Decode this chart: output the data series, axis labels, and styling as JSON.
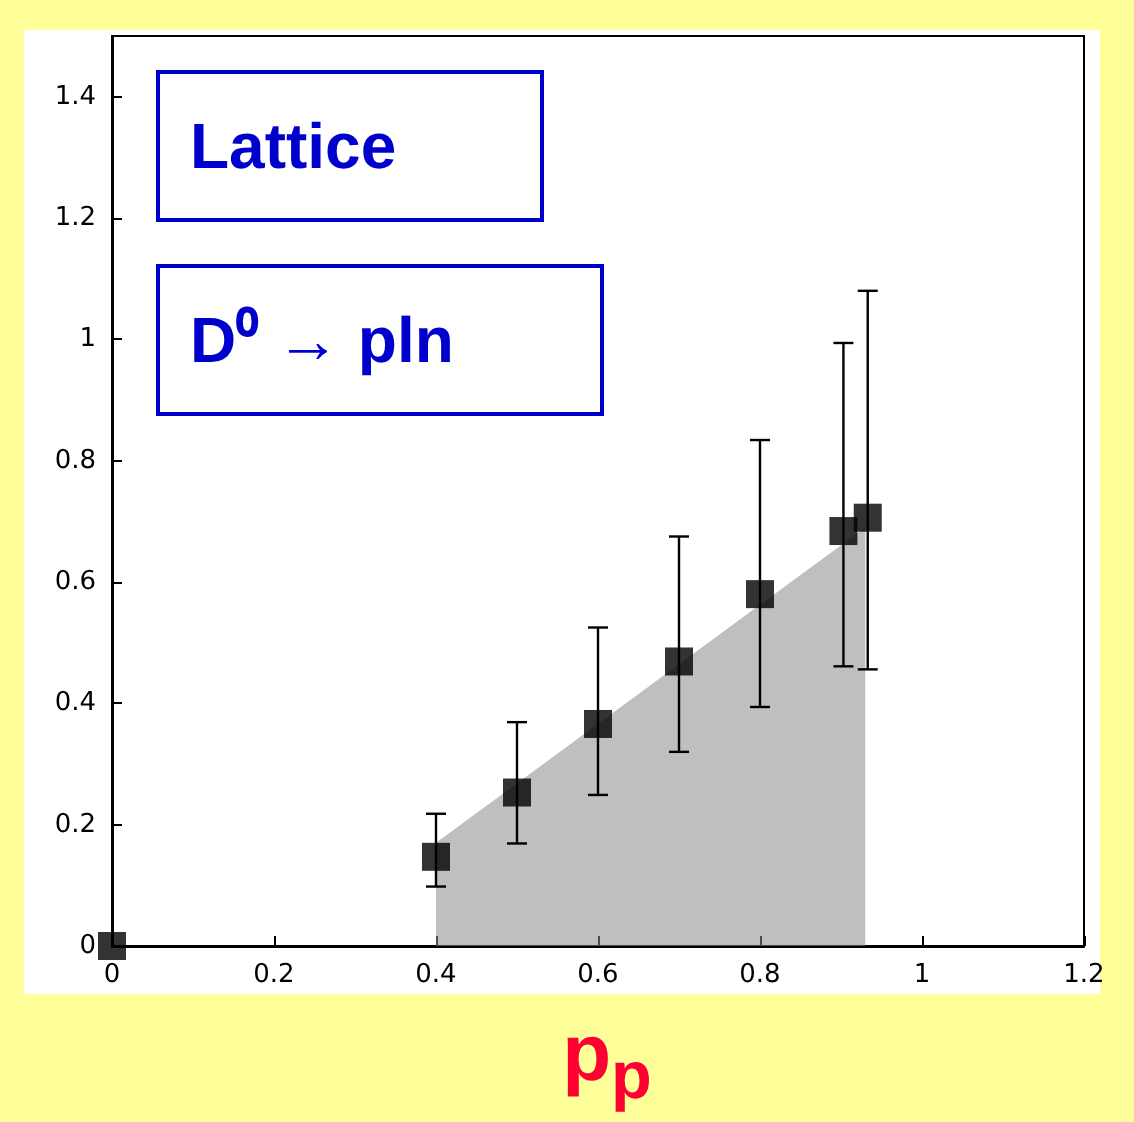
{
  "chart_data": {
    "type": "scatter",
    "xlabel": "p$_{p}$",
    "annotations": [
      "Lattice",
      "D⁰ → pln"
    ],
    "series": [
      {
        "type": "area",
        "marker": "none",
        "color": "#8a8a8a",
        "x": [
          0.4,
          0.93
        ],
        "values": [
          0.17,
          0.69
        ]
      },
      {
        "marker": "square",
        "color": "#000000",
        "x": [
          0,
          0.4,
          0.5,
          0.6,
          0.7,
          0.8,
          0.903,
          0.933
        ],
        "values": [
          0,
          0.147,
          0.253,
          0.366,
          0.469,
          0.58,
          0.684,
          0.706
        ],
        "errors": [
          null,
          [
            0.098,
            0.218
          ],
          [
            0.169,
            0.369
          ],
          [
            0.249,
            0.525
          ],
          [
            0.32,
            0.675
          ],
          [
            0.394,
            0.834
          ],
          [
            0.461,
            0.994
          ],
          [
            0.456,
            1.08
          ]
        ]
      }
    ],
    "xlim": [
      0,
      1.2
    ],
    "xticks": [
      0,
      0.2,
      0.4,
      0.6,
      0.8,
      1,
      1.2
    ],
    "ylim": [
      0,
      1.5
    ],
    "yticks": [
      0,
      0.2,
      0.4,
      0.6,
      0.8,
      1,
      1.2,
      1.4
    ],
    "grid": false
  }
}
